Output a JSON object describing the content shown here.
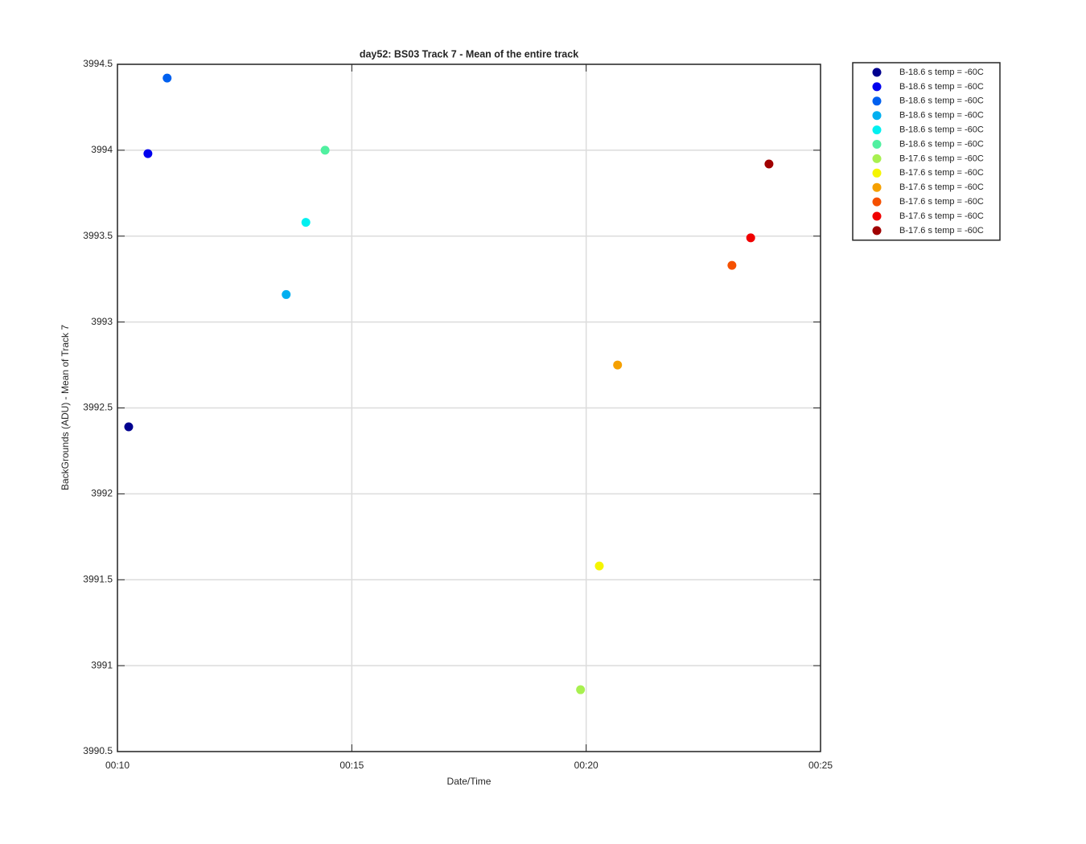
{
  "chart_data": {
    "type": "scatter",
    "title": "day52: BS03  Track 7 - Mean of the entire track",
    "x_label": "Date/Time",
    "y_label": "BackGrounds (ADU) - Mean of Track 7",
    "xlim": [
      10,
      25
    ],
    "xticks": [
      {
        "value": 10,
        "label": "00:10"
      },
      {
        "value": 15,
        "label": "00:15"
      },
      {
        "value": 20,
        "label": "00:20"
      },
      {
        "value": 25,
        "label": "00:25"
      }
    ],
    "ylim": [
      3990.5,
      3994.5
    ],
    "yticks": [
      3990.5,
      3991,
      3991.5,
      3992,
      3992.5,
      3993,
      3993.5,
      3994,
      3994.5
    ],
    "grid": true,
    "legend": "outside-right",
    "series": [
      {
        "name": "B-18.6 s temp = -60C",
        "color": "#00008f",
        "x": [
          10.24
        ],
        "values": [
          3992.39
        ]
      },
      {
        "name": "B-18.6 s temp = -60C",
        "color": "#0000ee",
        "x": [
          10.65
        ],
        "values": [
          3993.98
        ]
      },
      {
        "name": "B-18.6 s temp = -60C",
        "color": "#0060ef",
        "x": [
          11.06
        ],
        "values": [
          3994.42
        ]
      },
      {
        "name": "B-18.6 s temp = -60C",
        "color": "#00aff0",
        "x": [
          13.6
        ],
        "values": [
          3993.16
        ]
      },
      {
        "name": "B-18.6 s temp = -60C",
        "color": "#00f0f0",
        "x": [
          14.02
        ],
        "values": [
          3993.58
        ]
      },
      {
        "name": "B-18.6 s temp = -60C",
        "color": "#50f0a0",
        "x": [
          14.43
        ],
        "values": [
          3994.0
        ]
      },
      {
        "name": "B-17.6 s temp = -60C",
        "color": "#a8f050",
        "x": [
          19.88
        ],
        "values": [
          3990.86
        ]
      },
      {
        "name": "B-17.6 s temp = -60C",
        "color": "#f5f500",
        "x": [
          20.28
        ],
        "values": [
          3991.58
        ]
      },
      {
        "name": "B-17.6 s temp = -60C",
        "color": "#f5a000",
        "x": [
          20.67
        ],
        "values": [
          3992.75
        ]
      },
      {
        "name": "B-17.6 s temp = -60C",
        "color": "#f55000",
        "x": [
          23.11
        ],
        "values": [
          3993.33
        ]
      },
      {
        "name": "B-17.6 s temp = -60C",
        "color": "#f00000",
        "x": [
          23.51
        ],
        "values": [
          3993.49
        ]
      },
      {
        "name": "B-17.6 s temp = -60C",
        "color": "#a00000",
        "x": [
          23.9
        ],
        "values": [
          3993.92
        ]
      }
    ]
  }
}
